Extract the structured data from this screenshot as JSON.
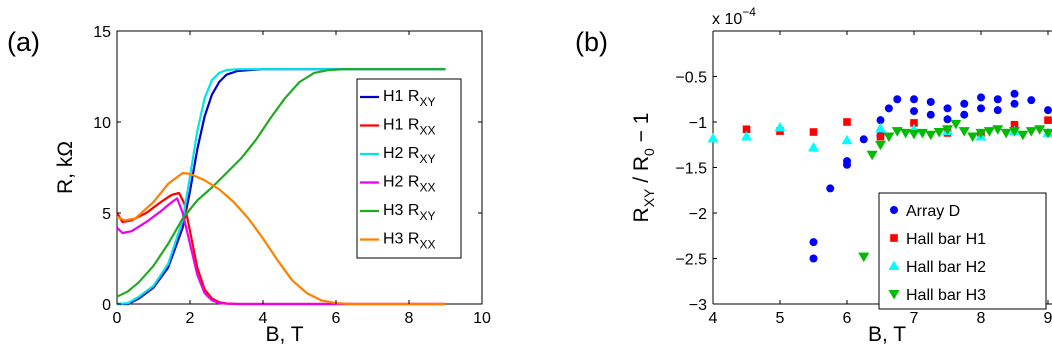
{
  "chart_data": [
    {
      "type": "line",
      "panel_label": "(a)",
      "xlabel": "B, T",
      "ylabel": "R, kΩ",
      "xlim": [
        0,
        10
      ],
      "ylim": [
        0,
        15
      ],
      "xticks": [
        0,
        2,
        4,
        6,
        8,
        10
      ],
      "yticks": [
        0,
        5,
        10,
        15
      ],
      "grid": false,
      "legend_position": "right",
      "series": [
        {
          "name": "H1 R",
          "name_sub": "XY",
          "color": "#0000cc",
          "x": [
            0,
            0.3,
            0.6,
            1.0,
            1.4,
            1.8,
            2.0,
            2.2,
            2.4,
            2.6,
            2.8,
            3.0,
            3.3,
            3.6,
            4.0,
            5.0,
            6.0,
            9.0
          ],
          "y": [
            0,
            0,
            0.3,
            0.9,
            2.0,
            4.2,
            6.2,
            8.5,
            10.3,
            11.5,
            12.2,
            12.6,
            12.8,
            12.85,
            12.9,
            12.9,
            12.9,
            12.9
          ]
        },
        {
          "name": "H1 R",
          "name_sub": "XX",
          "color": "#ff0000",
          "x": [
            0,
            0.15,
            0.4,
            0.8,
            1.2,
            1.5,
            1.7,
            1.85,
            2.0,
            2.2,
            2.4,
            2.6,
            2.8,
            3.0,
            3.3,
            4.0,
            9.0
          ],
          "y": [
            5.0,
            4.5,
            4.6,
            5.0,
            5.6,
            6.0,
            6.1,
            5.5,
            4.0,
            2.0,
            0.8,
            0.3,
            0.1,
            0.03,
            0,
            0,
            0
          ]
        },
        {
          "name": "H2 R",
          "name_sub": "XY",
          "color": "#00e6e6",
          "x": [
            0,
            0.3,
            0.6,
            1.0,
            1.4,
            1.8,
            2.0,
            2.2,
            2.4,
            2.6,
            2.8,
            3.0,
            3.3,
            4.0,
            9.0
          ],
          "y": [
            0,
            0.05,
            0.4,
            1.0,
            2.2,
            4.6,
            7.0,
            9.5,
            11.3,
            12.3,
            12.7,
            12.85,
            12.9,
            12.9,
            12.9
          ]
        },
        {
          "name": "H2 R",
          "name_sub": "XX",
          "color": "#ee00ee",
          "x": [
            0,
            0.15,
            0.4,
            0.8,
            1.2,
            1.5,
            1.65,
            1.8,
            2.0,
            2.2,
            2.4,
            2.6,
            2.8,
            3.0,
            3.3,
            9.0
          ],
          "y": [
            4.2,
            3.9,
            4.0,
            4.5,
            5.1,
            5.6,
            5.8,
            5.0,
            3.3,
            1.6,
            0.6,
            0.2,
            0.05,
            0.02,
            0,
            0
          ]
        },
        {
          "name": "H3 R",
          "name_sub": "XY",
          "color": "#22aa22",
          "x": [
            0,
            0.3,
            0.6,
            1.0,
            1.4,
            1.8,
            2.2,
            2.6,
            3.0,
            3.4,
            3.8,
            4.2,
            4.6,
            5.0,
            5.4,
            5.8,
            6.2,
            7.0,
            9.0
          ],
          "y": [
            0.4,
            0.7,
            1.2,
            2.1,
            3.3,
            4.7,
            5.7,
            6.4,
            7.2,
            8.0,
            9.0,
            10.2,
            11.3,
            12.2,
            12.7,
            12.85,
            12.9,
            12.9,
            12.9
          ]
        },
        {
          "name": "H3 R",
          "name_sub": "XX",
          "color": "#ff8000",
          "x": [
            0,
            0.2,
            0.5,
            1.0,
            1.4,
            1.8,
            2.0,
            2.4,
            2.8,
            3.2,
            3.6,
            4.0,
            4.4,
            4.8,
            5.2,
            5.6,
            6.0,
            6.4,
            9.0
          ],
          "y": [
            4.8,
            4.6,
            4.7,
            5.6,
            6.6,
            7.2,
            7.15,
            6.8,
            6.3,
            5.6,
            4.7,
            3.6,
            2.4,
            1.3,
            0.6,
            0.2,
            0.05,
            0,
            0
          ]
        }
      ]
    },
    {
      "type": "scatter",
      "panel_label": "(b)",
      "xlabel": "B, T",
      "ylabel": "R",
      "ylabel_sub1": "XY",
      "ylabel_mid": " / R",
      "ylabel_sub2": "0",
      "ylabel_end": " − 1",
      "exponent_label": "x 10",
      "exponent_power": "−4",
      "xlim": [
        4,
        9
      ],
      "ylim": [
        -3,
        0
      ],
      "xticks": [
        4,
        5,
        6,
        7,
        8,
        9
      ],
      "yticks": [
        -3,
        -2.5,
        -2,
        -1.5,
        -1,
        -0.5
      ],
      "ytick_labels": [
        "−3",
        "−2.5",
        "−2",
        "−1.5",
        "−1",
        "−0.5"
      ],
      "grid": false,
      "legend_position": "bottom-right",
      "series": [
        {
          "name": "Array D",
          "marker": "circle",
          "color": "#0000ff",
          "x": [
            5.5,
            5.5,
            5.75,
            6.0,
            6.0,
            6.25,
            6.5,
            6.5,
            6.625,
            6.75,
            7.0,
            7.0,
            7.25,
            7.25,
            7.5,
            7.5,
            7.75,
            7.75,
            8.0,
            8.0,
            8.25,
            8.25,
            8.5,
            8.5,
            8.75,
            9.0
          ],
          "y": [
            -2.32,
            -2.5,
            -1.73,
            -1.43,
            -1.47,
            -1.19,
            -0.98,
            -1.15,
            -0.85,
            -0.75,
            -0.75,
            -0.88,
            -0.78,
            -0.92,
            -0.85,
            -0.97,
            -0.8,
            -0.92,
            -0.73,
            -0.85,
            -0.75,
            -0.87,
            -0.69,
            -0.8,
            -0.76,
            -0.87
          ]
        },
        {
          "name": "Hall bar H1",
          "marker": "square",
          "color": "#ff0000",
          "x": [
            4.5,
            5.0,
            5.5,
            6.0,
            6.5,
            7.0,
            7.5,
            8.0,
            8.5,
            9.0
          ],
          "y": [
            -1.08,
            -1.1,
            -1.11,
            -1.0,
            -1.16,
            -1.01,
            -1.12,
            -1.12,
            -1.03,
            -0.98
          ]
        },
        {
          "name": "Hall bar H2",
          "marker": "triangle-up",
          "color": "#00ffff",
          "x": [
            4.0,
            4.5,
            5.0,
            5.5,
            6.0,
            6.5,
            7.0,
            7.5,
            8.0,
            8.5,
            9.0
          ],
          "y": [
            -1.18,
            -1.16,
            -1.06,
            -1.28,
            -1.2,
            -1.07,
            -1.08,
            -1.1,
            -1.16,
            -1.1,
            -1.12
          ]
        },
        {
          "name": "Hall bar H3",
          "marker": "triangle-down",
          "color": "#00bb00",
          "x": [
            6.25,
            6.375,
            6.5,
            6.625,
            6.75,
            6.875,
            7.0,
            7.125,
            7.25,
            7.375,
            7.5,
            7.625,
            7.75,
            7.875,
            8.0,
            8.125,
            8.25,
            8.375,
            8.5,
            8.625,
            8.75,
            8.875,
            9.0
          ],
          "y": [
            -2.48,
            -1.36,
            -1.25,
            -1.16,
            -1.1,
            -1.12,
            -1.13,
            -1.12,
            -1.14,
            -1.11,
            -1.08,
            -1.02,
            -1.1,
            -1.16,
            -1.12,
            -1.1,
            -1.08,
            -1.12,
            -1.1,
            -1.14,
            -1.1,
            -1.08,
            -1.12
          ]
        }
      ]
    }
  ]
}
